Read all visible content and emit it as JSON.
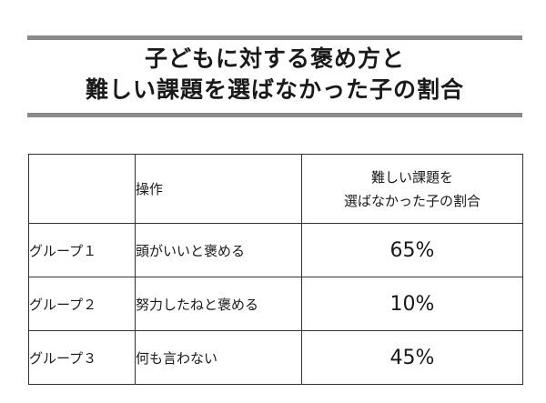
{
  "title": {
    "line1": "子どもに対する褒め方と",
    "line2": "難しい課題を選ばなかった子の割合"
  },
  "colors": {
    "rule": "#8a8a8a",
    "border": "#333333",
    "text": "#1a1a1a"
  },
  "chart_data": {
    "type": "table",
    "headers": {
      "group": "",
      "operation": "操作",
      "rate_line1": "難しい課題を",
      "rate_line2": "選ばなかった子の割合"
    },
    "rows": [
      {
        "group": "グループ１",
        "operation": "頭がいいと褒める",
        "rate": "65%",
        "value": 65
      },
      {
        "group": "グループ２",
        "operation": "努力したねと褒める",
        "rate": "10%",
        "value": 10
      },
      {
        "group": "グループ３",
        "operation": "何も言わない",
        "rate": "45%",
        "value": 45
      }
    ]
  }
}
